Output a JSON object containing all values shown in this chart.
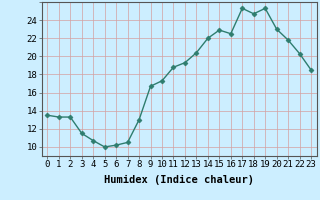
{
  "x": [
    0,
    1,
    2,
    3,
    4,
    5,
    6,
    7,
    8,
    9,
    10,
    11,
    12,
    13,
    14,
    15,
    16,
    17,
    18,
    19,
    20,
    21,
    22,
    23
  ],
  "y": [
    13.5,
    13.3,
    13.3,
    11.5,
    10.7,
    10.0,
    10.2,
    10.5,
    13.0,
    16.7,
    17.3,
    18.8,
    19.3,
    20.4,
    22.0,
    22.9,
    22.5,
    25.3,
    24.7,
    25.3,
    23.0,
    21.8,
    20.3,
    18.5
  ],
  "line_color": "#2e7d6e",
  "marker": "D",
  "marker_size": 2.5,
  "bg_color": "#cceeff",
  "grid_color_major": "#d4a0a0",
  "grid_color_minor": "#d4a0a0",
  "xlabel": "Humidex (Indice chaleur)",
  "xlim": [
    -0.5,
    23.5
  ],
  "ylim": [
    9.0,
    26.0
  ],
  "yticks": [
    10,
    12,
    14,
    16,
    18,
    20,
    22,
    24
  ],
  "xticks": [
    0,
    1,
    2,
    3,
    4,
    5,
    6,
    7,
    8,
    9,
    10,
    11,
    12,
    13,
    14,
    15,
    16,
    17,
    18,
    19,
    20,
    21,
    22,
    23
  ],
  "xlabel_fontsize": 7.5,
  "tick_fontsize": 6.5,
  "linewidth": 1.0
}
